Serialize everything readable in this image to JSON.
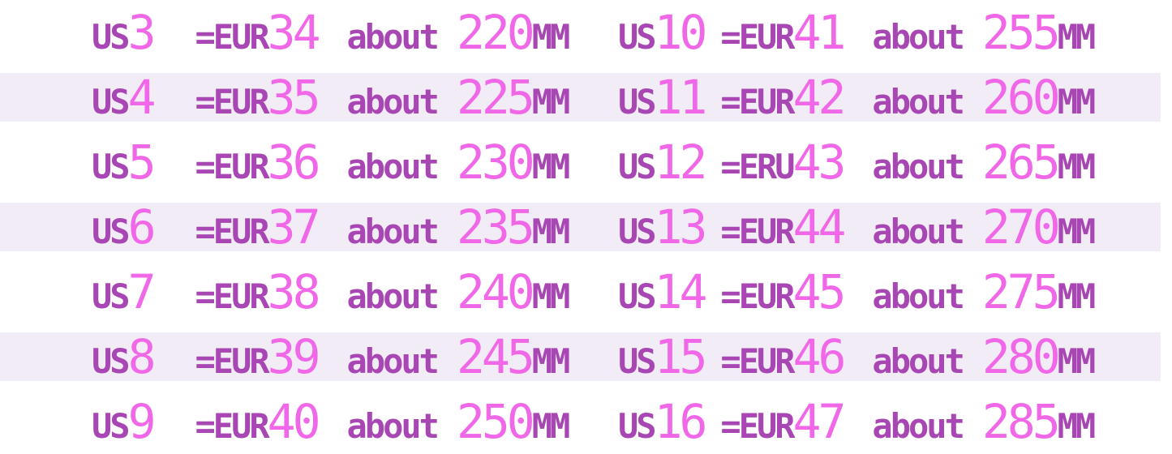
{
  "colors": {
    "label_text": "#a847b4",
    "number_text": "#f068e8",
    "stripe_background": "#f2ecf7",
    "page_background": "#ffffff"
  },
  "chart_data": {
    "type": "table",
    "columns": [
      "us_size",
      "eur_size",
      "foot_length_mm"
    ],
    "values": [
      [
        3,
        34,
        220
      ],
      [
        4,
        35,
        225
      ],
      [
        5,
        36,
        230
      ],
      [
        6,
        37,
        235
      ],
      [
        7,
        38,
        240
      ],
      [
        8,
        39,
        245
      ],
      [
        9,
        40,
        250
      ],
      [
        10,
        41,
        255
      ],
      [
        11,
        42,
        260
      ],
      [
        12,
        43,
        265
      ],
      [
        13,
        44,
        270
      ],
      [
        14,
        45,
        275
      ],
      [
        15,
        46,
        280
      ],
      [
        16,
        47,
        285
      ]
    ]
  },
  "rows": [
    {
      "left": {
        "us_label": "US",
        "us": "3",
        "eq_label": "=EUR",
        "eur": "34",
        "about_label": "about",
        "mm": "220",
        "mm_label": "MM"
      },
      "right": {
        "us_label": "US",
        "us": "10",
        "eq_label": "=EUR",
        "eur": "41",
        "about_label": "about",
        "mm": "255",
        "mm_label": "MM"
      }
    },
    {
      "left": {
        "us_label": "US",
        "us": "4",
        "eq_label": "=EUR",
        "eur": "35",
        "about_label": "about",
        "mm": "225",
        "mm_label": "MM"
      },
      "right": {
        "us_label": "US",
        "us": "11",
        "eq_label": "=EUR",
        "eur": "42",
        "about_label": "about",
        "mm": "260",
        "mm_label": "MM"
      }
    },
    {
      "left": {
        "us_label": "US",
        "us": "5",
        "eq_label": "=EUR",
        "eur": "36",
        "about_label": "about",
        "mm": "230",
        "mm_label": "MM"
      },
      "right": {
        "us_label": "US",
        "us": "12",
        "eq_label": "=ERU",
        "eur": "43",
        "about_label": "about",
        "mm": "265",
        "mm_label": "MM"
      }
    },
    {
      "left": {
        "us_label": "US",
        "us": "6",
        "eq_label": "=EUR",
        "eur": "37",
        "about_label": "about",
        "mm": "235",
        "mm_label": "MM"
      },
      "right": {
        "us_label": "US",
        "us": "13",
        "eq_label": "=EUR",
        "eur": "44",
        "about_label": "about",
        "mm": "270",
        "mm_label": "MM"
      }
    },
    {
      "left": {
        "us_label": "US",
        "us": "7",
        "eq_label": "=EUR",
        "eur": "38",
        "about_label": "about",
        "mm": "240",
        "mm_label": "MM"
      },
      "right": {
        "us_label": "US",
        "us": "14",
        "eq_label": "=EUR",
        "eur": "45",
        "about_label": "about",
        "mm": "275",
        "mm_label": "MM"
      }
    },
    {
      "left": {
        "us_label": "US",
        "us": "8",
        "eq_label": "=EUR",
        "eur": "39",
        "about_label": "about",
        "mm": "245",
        "mm_label": "MM"
      },
      "right": {
        "us_label": "US",
        "us": "15",
        "eq_label": "=EUR",
        "eur": "46",
        "about_label": "about",
        "mm": "280",
        "mm_label": "MM"
      }
    },
    {
      "left": {
        "us_label": "US",
        "us": "9",
        "eq_label": "=EUR",
        "eur": "40",
        "about_label": "about",
        "mm": "250",
        "mm_label": "MM"
      },
      "right": {
        "us_label": "US",
        "us": "16",
        "eq_label": "=EUR",
        "eur": "47",
        "about_label": "about",
        "mm": "285",
        "mm_label": "MM"
      }
    }
  ]
}
